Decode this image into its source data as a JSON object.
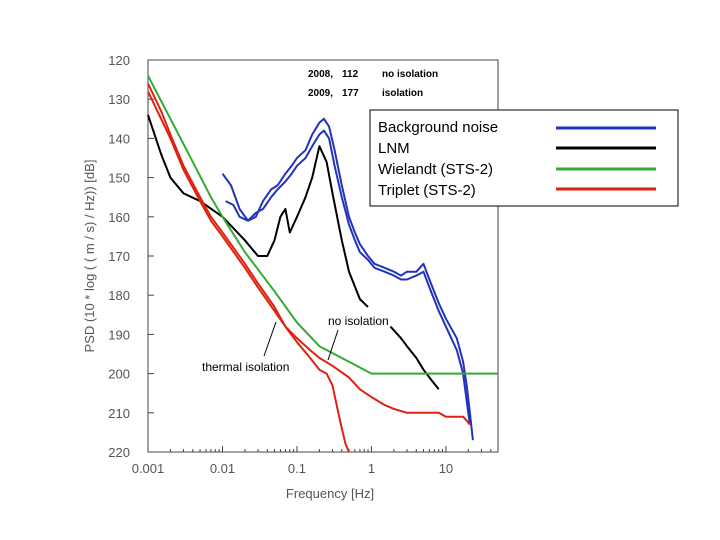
{
  "chart_data": {
    "type": "line",
    "xlabel": "Frequency   [Hz]",
    "ylabel": "PSD (10 * log ( ( m / s) / Hz))   [dB]",
    "x_scale": "log",
    "xlim": [
      0.001,
      50
    ],
    "ylim": [
      120,
      220
    ],
    "y_inverted": true,
    "x_ticks": [
      0.001,
      0.01,
      0.1,
      1,
      10
    ],
    "x_tick_labels": [
      "0.001",
      "0.01",
      "0.1",
      "1",
      "10"
    ],
    "y_ticks": [
      120,
      130,
      140,
      150,
      160,
      170,
      180,
      190,
      200,
      210,
      220
    ],
    "y_tick_labels": [
      "120",
      "130",
      "140",
      "150",
      "160",
      "170",
      "180",
      "190",
      "200",
      "210",
      "220"
    ],
    "grid": false,
    "legend": {
      "placement": "right",
      "entries": [
        {
          "label": "Background noise",
          "color": "#2233bb"
        },
        {
          "label": "LNM",
          "color": "#000000"
        },
        {
          "label": "Wielandt (STS-2)",
          "color": "#33aa33"
        },
        {
          "label": "Triplet (STS-2)",
          "color": "#dd2211"
        }
      ]
    },
    "header_legend": {
      "rows": [
        {
          "year": "2008,",
          "count": "112",
          "label": "no  isolation"
        },
        {
          "year": "2009,",
          "count": "177",
          "label": "isolation"
        }
      ]
    },
    "annotations": [
      {
        "text": "no isolation"
      },
      {
        "text": "thermal isolation"
      }
    ],
    "series": [
      {
        "name": "Background noise",
        "color": "#2233bb",
        "points": [
          [
            0.01,
            149
          ],
          [
            0.013,
            152
          ],
          [
            0.017,
            158
          ],
          [
            0.022,
            161
          ],
          [
            0.028,
            160
          ],
          [
            0.035,
            156
          ],
          [
            0.045,
            153
          ],
          [
            0.055,
            152
          ],
          [
            0.07,
            149
          ],
          [
            0.085,
            147
          ],
          [
            0.1,
            145
          ],
          [
            0.13,
            143
          ],
          [
            0.16,
            139
          ],
          [
            0.2,
            136
          ],
          [
            0.23,
            135
          ],
          [
            0.27,
            137
          ],
          [
            0.32,
            143
          ],
          [
            0.4,
            152
          ],
          [
            0.5,
            160
          ],
          [
            0.6,
            164
          ],
          [
            0.7,
            167
          ],
          [
            0.9,
            170
          ],
          [
            1.1,
            172
          ],
          [
            1.5,
            173
          ],
          [
            2,
            174
          ],
          [
            2.5,
            175
          ],
          [
            3,
            174
          ],
          [
            4,
            174
          ],
          [
            5,
            172
          ],
          [
            6,
            176
          ],
          [
            8,
            182
          ],
          [
            10,
            186
          ],
          [
            14,
            191
          ],
          [
            17,
            197
          ],
          [
            19,
            203
          ],
          [
            21,
            210
          ],
          [
            23,
            217
          ]
        ]
      },
      {
        "name": "Background noise",
        "color": "#2233bb",
        "points": [
          [
            0.011,
            156
          ],
          [
            0.014,
            157
          ],
          [
            0.017,
            160
          ],
          [
            0.022,
            161
          ],
          [
            0.028,
            159
          ],
          [
            0.035,
            158
          ],
          [
            0.045,
            155
          ],
          [
            0.055,
            153
          ],
          [
            0.07,
            151
          ],
          [
            0.085,
            149
          ],
          [
            0.1,
            147
          ],
          [
            0.13,
            145
          ],
          [
            0.16,
            142
          ],
          [
            0.2,
            139
          ],
          [
            0.23,
            138
          ],
          [
            0.27,
            140
          ],
          [
            0.32,
            147
          ],
          [
            0.4,
            155
          ],
          [
            0.5,
            162
          ],
          [
            0.6,
            166
          ],
          [
            0.7,
            169
          ],
          [
            0.9,
            171
          ],
          [
            1.1,
            173
          ],
          [
            1.5,
            174
          ],
          [
            2,
            175
          ],
          [
            2.5,
            176
          ],
          [
            3,
            176
          ],
          [
            4,
            175
          ],
          [
            5,
            174
          ],
          [
            6,
            178
          ],
          [
            8,
            184
          ],
          [
            10,
            188
          ],
          [
            14,
            194
          ],
          [
            17,
            200
          ],
          [
            19,
            207
          ],
          [
            21,
            213
          ]
        ]
      },
      {
        "name": "LNM",
        "color": "#000000",
        "points": [
          [
            0.001,
            134
          ],
          [
            0.0015,
            144
          ],
          [
            0.002,
            150
          ],
          [
            0.003,
            154
          ],
          [
            0.005,
            156
          ],
          [
            0.01,
            160
          ],
          [
            0.02,
            166
          ],
          [
            0.03,
            170
          ],
          [
            0.04,
            170
          ],
          [
            0.05,
            166
          ],
          [
            0.06,
            160
          ],
          [
            0.07,
            158
          ],
          [
            0.08,
            164
          ],
          [
            0.1,
            160
          ],
          [
            0.13,
            155
          ],
          [
            0.16,
            150
          ],
          [
            0.2,
            142
          ],
          [
            0.25,
            146
          ],
          [
            0.3,
            154
          ],
          [
            0.4,
            166
          ],
          [
            0.5,
            174
          ],
          [
            0.7,
            181
          ],
          [
            0.9,
            183
          ]
        ]
      },
      {
        "name": "LNM",
        "color": "#000000",
        "points": [
          [
            1.8,
            188
          ],
          [
            2.5,
            191
          ],
          [
            3,
            193
          ],
          [
            4,
            196
          ],
          [
            5,
            199
          ],
          [
            6,
            201
          ],
          [
            8,
            204
          ]
        ]
      },
      {
        "name": "Wielandt (STS-2)",
        "color": "#33aa33",
        "points": [
          [
            0.001,
            124
          ],
          [
            0.002,
            135
          ],
          [
            0.004,
            146
          ],
          [
            0.007,
            155
          ],
          [
            0.01,
            160
          ],
          [
            0.02,
            169
          ],
          [
            0.05,
            179
          ],
          [
            0.1,
            187
          ],
          [
            0.2,
            193
          ],
          [
            0.5,
            197
          ],
          [
            1,
            200
          ],
          [
            2,
            200
          ],
          [
            5,
            200
          ],
          [
            10,
            200
          ],
          [
            50,
            200
          ]
        ]
      },
      {
        "name": "Triplet (STS-2)",
        "color": "#dd2211",
        "points": [
          [
            0.001,
            126
          ],
          [
            0.0015,
            133
          ],
          [
            0.002,
            139
          ],
          [
            0.003,
            147
          ],
          [
            0.005,
            155
          ],
          [
            0.007,
            160
          ],
          [
            0.01,
            164
          ],
          [
            0.02,
            172
          ],
          [
            0.03,
            177
          ],
          [
            0.05,
            183
          ],
          [
            0.07,
            188
          ],
          [
            0.1,
            192
          ],
          [
            0.15,
            196
          ],
          [
            0.2,
            199
          ],
          [
            0.25,
            200
          ],
          [
            0.3,
            203
          ],
          [
            0.35,
            209
          ],
          [
            0.4,
            214
          ],
          [
            0.45,
            218
          ],
          [
            0.5,
            220
          ]
        ]
      },
      {
        "name": "Triplet (STS-2)",
        "color": "#dd2211",
        "points": [
          [
            0.001,
            128
          ],
          [
            0.0015,
            135
          ],
          [
            0.002,
            140
          ],
          [
            0.003,
            148
          ],
          [
            0.005,
            156
          ],
          [
            0.007,
            161
          ],
          [
            0.01,
            165
          ],
          [
            0.02,
            173
          ],
          [
            0.03,
            178
          ],
          [
            0.05,
            184
          ],
          [
            0.07,
            188
          ],
          [
            0.1,
            191
          ],
          [
            0.15,
            194
          ],
          [
            0.2,
            196
          ],
          [
            0.3,
            198
          ],
          [
            0.5,
            201
          ],
          [
            0.7,
            204
          ],
          [
            1,
            206
          ],
          [
            1.5,
            208
          ],
          [
            2,
            209
          ],
          [
            3,
            210
          ],
          [
            4,
            210
          ],
          [
            5,
            210
          ],
          [
            6,
            210
          ],
          [
            8,
            210
          ],
          [
            10,
            211
          ],
          [
            12,
            211
          ],
          [
            15,
            211
          ],
          [
            17,
            211
          ],
          [
            19,
            212
          ],
          [
            21,
            213
          ]
        ]
      }
    ]
  }
}
